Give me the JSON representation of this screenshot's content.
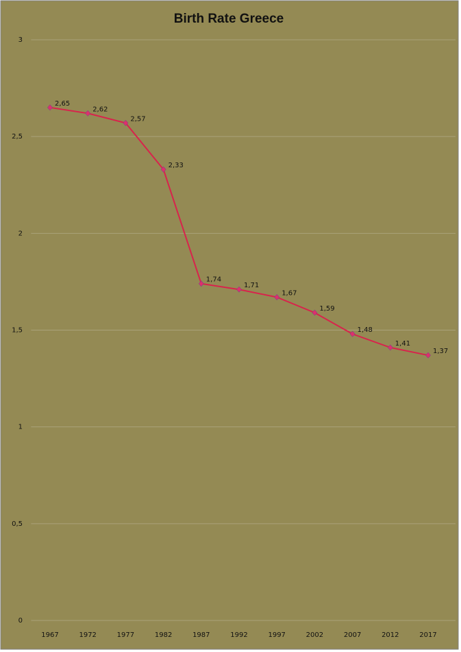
{
  "chart_data": {
    "type": "line",
    "title": "Birth Rate Greece",
    "categories": [
      "1967",
      "1972",
      "1977",
      "1982",
      "1987",
      "1992",
      "1997",
      "2002",
      "2007",
      "2012",
      "2017"
    ],
    "series": [
      {
        "name": "Birth Rate",
        "color": "#d8234c",
        "values": [
          2.65,
          2.62,
          2.57,
          2.33,
          1.74,
          1.71,
          1.67,
          1.59,
          1.48,
          1.41,
          1.37
        ],
        "value_labels": [
          "2,65",
          "2,62",
          "2,57",
          "2,33",
          "1,74",
          "1,71",
          "1,67",
          "1,59",
          "1,48",
          "1,41",
          "1,37"
        ]
      }
    ],
    "ylim": [
      0,
      3
    ],
    "yticks": [
      0,
      {
        "value": 0.5,
        "label": "0,5"
      },
      1,
      {
        "value": 1.5,
        "label": "1,5"
      },
      2,
      {
        "value": 2.5,
        "label": "2,5"
      },
      3
    ],
    "grid": true
  }
}
